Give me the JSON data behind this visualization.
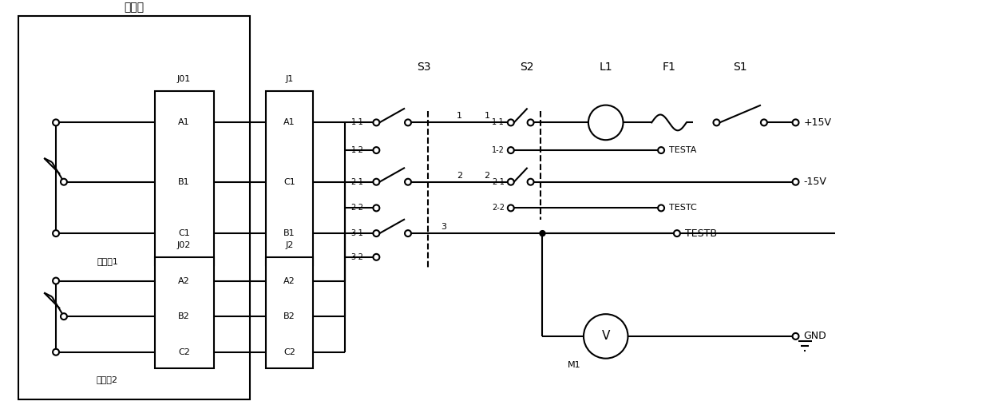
{
  "labels": {
    "chuanganqi": "传感器",
    "j01": "J01",
    "j02": "J02",
    "j1": "J1",
    "j2": "J2",
    "s3": "S3",
    "s2": "S2",
    "l1": "L1",
    "f1": "F1",
    "s1": "S1",
    "a1_j01": "A1",
    "b1_j01": "B1",
    "c1_j01": "C1",
    "a2_j02": "A2",
    "b2_j02": "B2",
    "c2_j02": "C2",
    "a1_j1": "A1",
    "c1_j1": "C1",
    "b1_j1": "B1",
    "a2_j2": "A2",
    "b2_j2": "B2",
    "c2_j2": "C2",
    "diweiji1": "电位计1",
    "diweiji2": "电位计2",
    "testa": "TESTA",
    "testb": "TESTB",
    "testc": "TESTC",
    "plus15v": "+15V",
    "minus15v": "-15V",
    "gnd": "GND",
    "m1": "M1",
    "n1": "1",
    "n2": "2",
    "n3": "3"
  },
  "fig_width": 12.4,
  "fig_height": 5.22
}
